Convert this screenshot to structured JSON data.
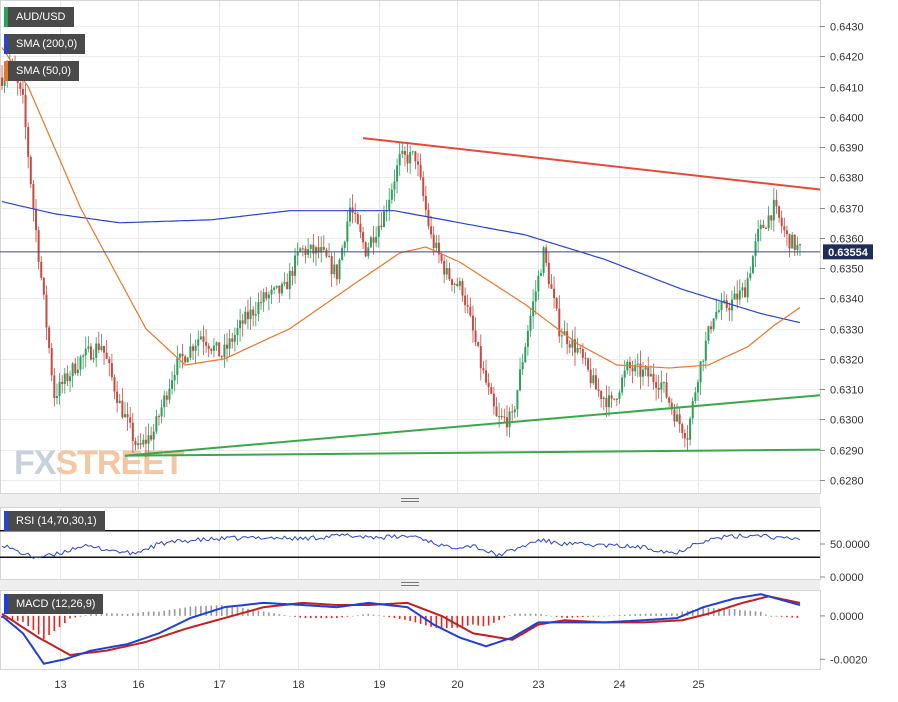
{
  "chart_data": {
    "type": "candlestick",
    "symbol": "AUD/USD",
    "overlays": [
      {
        "name": "SMA (200,0)",
        "color": "#2b45c9"
      },
      {
        "name": "SMA (50,0)",
        "color": "#e8772e"
      }
    ],
    "colors": {
      "up": "#2e9e5b",
      "down": "#c9493f",
      "resistance": "#e8483a",
      "support": "#3aa84a",
      "rsi": "#2b45c9",
      "macd": "#1f3fd6",
      "signal": "#c21f1f",
      "hist_pos": "#9a9a9a",
      "hist_neg": "#e3261d"
    },
    "x_tick_labels": [
      "13",
      "16",
      "17",
      "18",
      "19",
      "20",
      "23",
      "24",
      "25"
    ],
    "price_axis": {
      "ticks": [
        "0.6430",
        "0.6420",
        "0.6410",
        "0.6400",
        "0.6390",
        "0.6380",
        "0.6370",
        "0.6360",
        "0.6350",
        "0.6340",
        "0.6330",
        "0.6320",
        "0.6310",
        "0.6300",
        "0.6290",
        "0.6280"
      ],
      "range": [
        0.6276,
        0.6438
      ],
      "current_price": "0.63554",
      "current_value": 0.63554
    },
    "price_knots": [
      [
        0,
        0.6413
      ],
      [
        3,
        0.6418
      ],
      [
        8,
        0.6405
      ],
      [
        12,
        0.637
      ],
      [
        20,
        0.6308
      ],
      [
        30,
        0.632
      ],
      [
        38,
        0.6325
      ],
      [
        45,
        0.6305
      ],
      [
        52,
        0.629
      ],
      [
        58,
        0.6296
      ],
      [
        66,
        0.6317
      ],
      [
        76,
        0.6328
      ],
      [
        84,
        0.6321
      ],
      [
        92,
        0.6332
      ],
      [
        100,
        0.634
      ],
      [
        108,
        0.6343
      ],
      [
        114,
        0.6356
      ],
      [
        122,
        0.6355
      ],
      [
        128,
        0.6348
      ],
      [
        133,
        0.637
      ],
      [
        139,
        0.6356
      ],
      [
        146,
        0.6368
      ],
      [
        152,
        0.6386
      ],
      [
        158,
        0.6387
      ],
      [
        164,
        0.636
      ],
      [
        170,
        0.6348
      ],
      [
        176,
        0.6343
      ],
      [
        183,
        0.6318
      ],
      [
        189,
        0.63
      ],
      [
        195,
        0.63
      ],
      [
        201,
        0.633
      ],
      [
        207,
        0.6355
      ],
      [
        213,
        0.633
      ],
      [
        220,
        0.6323
      ],
      [
        227,
        0.631
      ],
      [
        233,
        0.6305
      ],
      [
        239,
        0.6317
      ],
      [
        246,
        0.6315
      ],
      [
        252,
        0.6312
      ],
      [
        258,
        0.63
      ],
      [
        262,
        0.6295
      ],
      [
        266,
        0.6315
      ],
      [
        272,
        0.6335
      ],
      [
        278,
        0.6338
      ],
      [
        284,
        0.6343
      ],
      [
        289,
        0.6361
      ],
      [
        295,
        0.637
      ],
      [
        300,
        0.636
      ],
      [
        305,
        0.6356
      ]
    ],
    "sma200_knots": [
      [
        0,
        0.6372
      ],
      [
        20,
        0.6368
      ],
      [
        45,
        0.6365
      ],
      [
        80,
        0.6366
      ],
      [
        110,
        0.6369
      ],
      [
        150,
        0.6369
      ],
      [
        175,
        0.6365
      ],
      [
        200,
        0.6361
      ],
      [
        230,
        0.6353
      ],
      [
        260,
        0.6343
      ],
      [
        290,
        0.6335
      ],
      [
        305,
        0.6332
      ]
    ],
    "sma50_knots": [
      [
        0,
        0.6423
      ],
      [
        10,
        0.641
      ],
      [
        30,
        0.637
      ],
      [
        55,
        0.633
      ],
      [
        70,
        0.6318
      ],
      [
        85,
        0.632
      ],
      [
        110,
        0.633
      ],
      [
        135,
        0.6345
      ],
      [
        152,
        0.6355
      ],
      [
        162,
        0.6357
      ],
      [
        175,
        0.6352
      ],
      [
        200,
        0.6338
      ],
      [
        220,
        0.6325
      ],
      [
        235,
        0.6318
      ],
      [
        255,
        0.6317
      ],
      [
        270,
        0.6318
      ],
      [
        285,
        0.6324
      ],
      [
        295,
        0.6331
      ],
      [
        305,
        0.6337
      ]
    ],
    "trendlines": [
      {
        "name": "resistance",
        "start": [
          138,
          0.6393
        ],
        "end": [
          315,
          0.6376
        ]
      },
      {
        "name": "support-rising",
        "start": [
          47,
          0.6288
        ],
        "end": [
          315,
          0.6308
        ]
      },
      {
        "name": "support-flat",
        "start": [
          47,
          0.6288
        ],
        "end": [
          315,
          0.629
        ]
      }
    ],
    "rsi": {
      "label": "RSI (14,70,30,1)",
      "ticks": [
        "50.0000",
        "0.0000"
      ],
      "levels": [
        70,
        30
      ],
      "range": [
        0,
        100
      ],
      "knots": [
        [
          0,
          50
        ],
        [
          5,
          40
        ],
        [
          12,
          30
        ],
        [
          20,
          33
        ],
        [
          30,
          47
        ],
        [
          40,
          42
        ],
        [
          50,
          35
        ],
        [
          60,
          50
        ],
        [
          70,
          55
        ],
        [
          85,
          58
        ],
        [
          100,
          60
        ],
        [
          115,
          58
        ],
        [
          130,
          63
        ],
        [
          145,
          60
        ],
        [
          158,
          62
        ],
        [
          170,
          45
        ],
        [
          180,
          48
        ],
        [
          189,
          33
        ],
        [
          195,
          40
        ],
        [
          205,
          56
        ],
        [
          215,
          50
        ],
        [
          230,
          48
        ],
        [
          245,
          45
        ],
        [
          258,
          36
        ],
        [
          265,
          52
        ],
        [
          275,
          60
        ],
        [
          290,
          64
        ],
        [
          298,
          58
        ],
        [
          305,
          58
        ]
      ]
    },
    "macd": {
      "label": "MACD (12,26,9)",
      "ticks": [
        "0.0000",
        "-0.0020"
      ],
      "range": [
        -0.0024,
        0.0011
      ],
      "macd_knots": [
        [
          0,
          0.0
        ],
        [
          8,
          -0.0008
        ],
        [
          16,
          -0.0022
        ],
        [
          24,
          -0.002
        ],
        [
          34,
          -0.0016
        ],
        [
          48,
          -0.0013
        ],
        [
          60,
          -0.0008
        ],
        [
          72,
          -0.0001
        ],
        [
          85,
          0.0004
        ],
        [
          100,
          0.0006
        ],
        [
          115,
          0.0005
        ],
        [
          128,
          0.0004
        ],
        [
          140,
          0.0006
        ],
        [
          155,
          0.0004
        ],
        [
          165,
          -0.0004
        ],
        [
          175,
          -0.001
        ],
        [
          185,
          -0.0014
        ],
        [
          195,
          -0.001
        ],
        [
          205,
          -0.0003
        ],
        [
          215,
          -0.0003
        ],
        [
          230,
          -0.0003
        ],
        [
          245,
          -0.0002
        ],
        [
          258,
          -0.0001
        ],
        [
          268,
          0.0004
        ],
        [
          280,
          0.0008
        ],
        [
          290,
          0.001
        ],
        [
          305,
          0.0005
        ]
      ],
      "signal_knots": [
        [
          0,
          0.0001
        ],
        [
          14,
          -0.001
        ],
        [
          26,
          -0.0018
        ],
        [
          40,
          -0.0016
        ],
        [
          55,
          -0.0012
        ],
        [
          70,
          -0.0006
        ],
        [
          85,
          -0.0001
        ],
        [
          100,
          0.0004
        ],
        [
          115,
          0.0006
        ],
        [
          128,
          0.0005
        ],
        [
          140,
          0.0005
        ],
        [
          155,
          0.0006
        ],
        [
          168,
          0.0
        ],
        [
          180,
          -0.0008
        ],
        [
          195,
          -0.0011
        ],
        [
          205,
          -0.0004
        ],
        [
          215,
          -0.0002
        ],
        [
          230,
          -0.0003
        ],
        [
          245,
          -0.0003
        ],
        [
          260,
          -0.0002
        ],
        [
          270,
          0.0001
        ],
        [
          283,
          0.0006
        ],
        [
          293,
          0.0009
        ],
        [
          305,
          0.0006
        ]
      ]
    }
  }
}
